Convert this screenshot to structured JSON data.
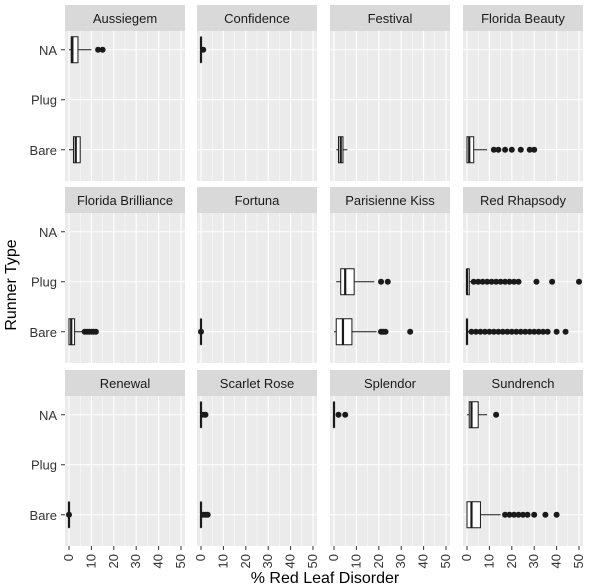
{
  "chart_data": {
    "type": "boxplot",
    "layout": "faceted-horizontal",
    "xlabel": "% Red Leaf Disorder",
    "ylabel": "Runner Type",
    "xlim": [
      0,
      50
    ],
    "x_ticks": [
      0,
      10,
      20,
      30,
      40,
      50
    ],
    "y_categories": [
      "NA",
      "Plug",
      "Bare"
    ],
    "grid": true,
    "colors": {
      "panel": "#ebebeb",
      "grid": "#ffffff",
      "strip": "#d9d9d9",
      "box_fill": "#ffffff",
      "stroke": "#1a1a1a"
    },
    "facets": [
      {
        "name": "Aussiegem",
        "boxes": [
          {
            "category": "NA",
            "q1": 1,
            "median": 1.5,
            "q3": 4,
            "lower": 0,
            "upper": 10,
            "outliers": [
              13,
              15
            ]
          },
          {
            "category": "Bare",
            "q1": 2,
            "median": 3,
            "q3": 5,
            "lower": 0,
            "upper": 5,
            "outliers": []
          }
        ]
      },
      {
        "name": "Confidence",
        "boxes": [
          {
            "category": "NA",
            "q1": 0,
            "median": 0,
            "q3": 0,
            "lower": 0,
            "upper": 0,
            "outliers": [
              1
            ]
          }
        ]
      },
      {
        "name": "Festival",
        "boxes": [
          {
            "category": "Bare",
            "q1": 2,
            "median": 3,
            "q3": 4,
            "lower": 1,
            "upper": 6,
            "outliers": []
          }
        ]
      },
      {
        "name": "Florida Beauty",
        "boxes": [
          {
            "category": "Bare",
            "q1": 0,
            "median": 1,
            "q3": 3,
            "lower": 0,
            "upper": 9,
            "outliers": [
              12,
              14,
              17,
              20,
              24,
              28,
              30
            ]
          }
        ]
      },
      {
        "name": "Florida Brilliance",
        "boxes": [
          {
            "category": "Bare",
            "q1": 0,
            "median": 1,
            "q3": 2.5,
            "lower": 0,
            "upper": 6,
            "outliers": [
              7,
              8,
              9,
              10,
              11,
              12
            ]
          }
        ]
      },
      {
        "name": "Fortuna",
        "boxes": [
          {
            "category": "Bare",
            "q1": 0,
            "median": 0,
            "q3": 0,
            "lower": 0,
            "upper": 0,
            "outliers": [
              0
            ]
          }
        ]
      },
      {
        "name": "Parisienne Kiss",
        "boxes": [
          {
            "category": "Plug",
            "q1": 3,
            "median": 5,
            "q3": 9,
            "lower": 1,
            "upper": 18,
            "outliers": [
              21,
              24
            ]
          },
          {
            "category": "Bare",
            "q1": 1,
            "median": 4,
            "q3": 8,
            "lower": 0,
            "upper": 19,
            "outliers": [
              21,
              22,
              23,
              34
            ]
          }
        ]
      },
      {
        "name": "Red Rhapsody",
        "boxes": [
          {
            "category": "Plug",
            "q1": 0,
            "median": 0,
            "q3": 1,
            "lower": 0,
            "upper": 2,
            "outliers": [
              3,
              5,
              7,
              9,
              11,
              13,
              15,
              17,
              19,
              21,
              23,
              31,
              38,
              50
            ]
          },
          {
            "category": "Bare",
            "q1": 0,
            "median": 0,
            "q3": 0,
            "lower": 0,
            "upper": 1,
            "outliers": [
              2,
              4,
              6,
              8,
              10,
              12,
              14,
              16,
              18,
              20,
              22,
              24,
              26,
              28,
              30,
              32,
              34,
              36,
              40,
              44
            ]
          }
        ]
      },
      {
        "name": "Renewal",
        "boxes": [
          {
            "category": "Bare",
            "q1": 0,
            "median": 0,
            "q3": 0,
            "lower": 0,
            "upper": 0,
            "outliers": [
              0
            ]
          }
        ]
      },
      {
        "name": "Scarlet Rose",
        "boxes": [
          {
            "category": "NA",
            "q1": 0,
            "median": 0,
            "q3": 0,
            "lower": 0,
            "upper": 0,
            "outliers": [
              1,
              2
            ]
          },
          {
            "category": "Bare",
            "q1": 0,
            "median": 0,
            "q3": 0,
            "lower": 0,
            "upper": 0,
            "outliers": [
              1,
              2,
              3
            ]
          }
        ]
      },
      {
        "name": "Splendor",
        "boxes": [
          {
            "category": "NA",
            "q1": 0,
            "median": 0,
            "q3": 0,
            "lower": 0,
            "upper": 0,
            "outliers": [
              2,
              5
            ]
          }
        ]
      },
      {
        "name": "Sundrench",
        "boxes": [
          {
            "category": "NA",
            "q1": 1,
            "median": 2,
            "q3": 5,
            "lower": 0,
            "upper": 9,
            "outliers": [
              13
            ]
          },
          {
            "category": "Bare",
            "q1": 0,
            "median": 2,
            "q3": 6,
            "lower": 0,
            "upper": 15,
            "outliers": [
              17,
              19,
              21,
              23,
              25,
              27,
              30,
              35,
              40
            ]
          }
        ]
      }
    ]
  }
}
